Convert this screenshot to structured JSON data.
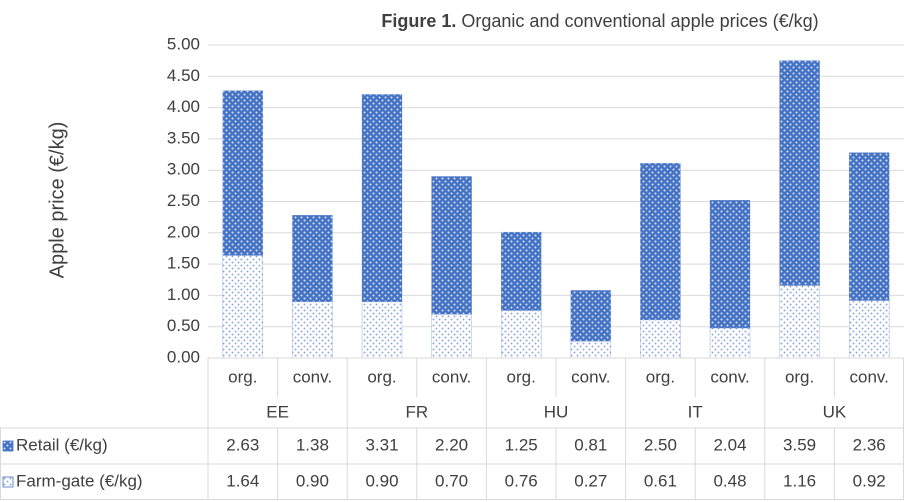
{
  "chart_data": {
    "type": "stacked_bar",
    "figure_label": "Figure 1.",
    "title": "Organic and conventional apple prices (€/kg)",
    "y_label": "Apple price (€/kg)",
    "groups": [
      "EE",
      "FR",
      "HU",
      "IT",
      "UK"
    ],
    "categories": [
      "org.",
      "conv.",
      "org.",
      "conv.",
      "org.",
      "conv.",
      "org.",
      "conv.",
      "org.",
      "conv."
    ],
    "series": [
      {
        "name": "Retail (€/kg)",
        "color": "#4472c4",
        "values": [
          2.63,
          1.38,
          3.31,
          2.2,
          1.25,
          0.81,
          2.5,
          2.04,
          3.59,
          2.36
        ],
        "value_labels": [
          "2.63",
          "1.38",
          "3.31",
          "2.20",
          "1.25",
          "0.81",
          "2.50",
          "2.04",
          "3.59",
          "2.36"
        ]
      },
      {
        "name": "Farm-gate (€/kg)",
        "color": "#4472c4",
        "values": [
          1.64,
          0.9,
          0.9,
          0.7,
          0.76,
          0.27,
          0.61,
          0.48,
          1.16,
          0.92
        ],
        "value_labels": [
          "1.64",
          "0.90",
          "0.90",
          "0.70",
          "0.76",
          "0.27",
          "0.61",
          "0.48",
          "1.16",
          "0.92"
        ]
      }
    ],
    "ylim": [
      0,
      5
    ],
    "yticks": [
      {
        "value": 0,
        "label": "0.00"
      },
      {
        "value": 0.5,
        "label": "0.50"
      },
      {
        "value": 1,
        "label": "1.00"
      },
      {
        "value": 1.5,
        "label": "1.50"
      },
      {
        "value": 2,
        "label": "2.00"
      },
      {
        "value": 2.5,
        "label": "2.50"
      },
      {
        "value": 3,
        "label": "3.00"
      },
      {
        "value": 3.5,
        "label": "3.50"
      },
      {
        "value": 4,
        "label": "4.00"
      },
      {
        "value": 4.5,
        "label": "4.50"
      },
      {
        "value": 5,
        "label": "5.00"
      }
    ],
    "grid": true
  }
}
